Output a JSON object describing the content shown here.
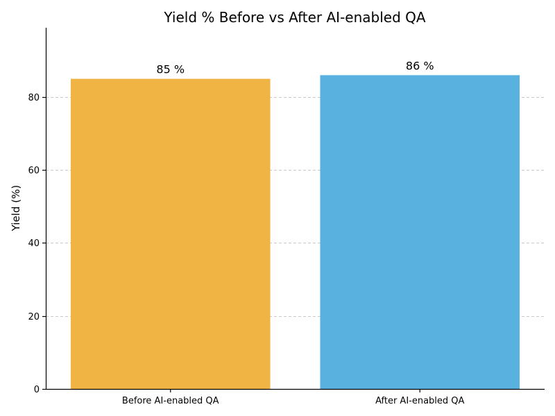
{
  "chart_data": {
    "type": "bar",
    "title": "Yield % Before vs After AI-enabled QA",
    "xlabel": "",
    "ylabel": "Yield (%)",
    "categories": [
      "Before AI-enabled QA",
      "After AI-enabled QA"
    ],
    "values": [
      85,
      86
    ],
    "data_labels": [
      "85 %",
      "86 %"
    ],
    "colors": [
      "#F0B445",
      "#59B1E0"
    ],
    "ylim": [
      0,
      99
    ],
    "yticks": [
      0,
      20,
      40,
      60,
      80
    ],
    "grid": true,
    "grid_axis": "y",
    "legend": false
  }
}
